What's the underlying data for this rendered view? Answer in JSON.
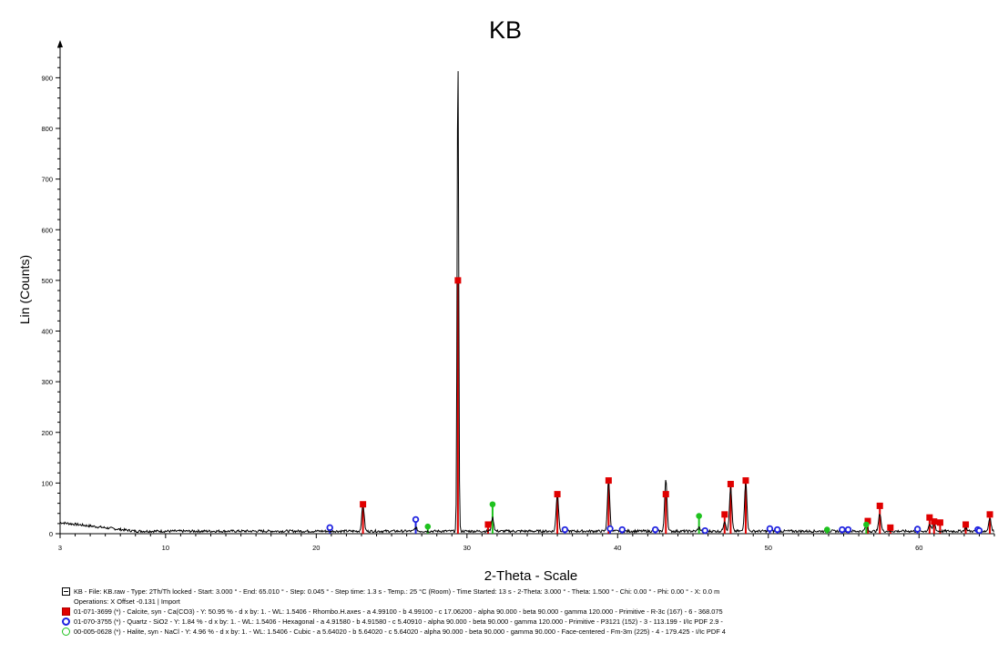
{
  "colors": {
    "pattern": "#000000",
    "calcite": "#e00000",
    "quartz": "#1f22e0",
    "halite": "#1fc21f",
    "axis": "#000000"
  },
  "chart_data": {
    "type": "line",
    "title": "KB",
    "xlabel": "2-Theta - Scale",
    "ylabel": "Lin (Counts)",
    "xlim": [
      3,
      65
    ],
    "ylim": [
      0,
      960
    ],
    "x_ticks": [
      3,
      10,
      20,
      30,
      40,
      50,
      60
    ],
    "y_ticks": [
      0,
      100,
      200,
      300,
      400,
      500,
      600,
      700,
      800,
      900
    ],
    "grid": false,
    "legend_position": "bottom",
    "series": [
      {
        "name": "KB",
        "kind": "pattern",
        "baseline": 5,
        "background_start": [
          3,
          22
        ],
        "peaks": [
          {
            "x": 23.1,
            "y": 58
          },
          {
            "x": 26.6,
            "y": 12
          },
          {
            "x": 29.4,
            "y": 958
          },
          {
            "x": 31.7,
            "y": 32
          },
          {
            "x": 36.0,
            "y": 80
          },
          {
            "x": 39.4,
            "y": 105
          },
          {
            "x": 43.2,
            "y": 108
          },
          {
            "x": 45.4,
            "y": 12
          },
          {
            "x": 47.1,
            "y": 25
          },
          {
            "x": 47.5,
            "y": 90
          },
          {
            "x": 48.5,
            "y": 102
          },
          {
            "x": 56.5,
            "y": 16
          },
          {
            "x": 57.4,
            "y": 40
          },
          {
            "x": 60.7,
            "y": 18
          },
          {
            "x": 61.0,
            "y": 22
          },
          {
            "x": 63.1,
            "y": 12
          },
          {
            "x": 64.7,
            "y": 32
          }
        ]
      },
      {
        "name": "Calcite",
        "kind": "sticks",
        "marker": "square",
        "sticks": [
          {
            "x": 23.1,
            "y": 58
          },
          {
            "x": 29.4,
            "y": 500
          },
          {
            "x": 31.4,
            "y": 18
          },
          {
            "x": 36.0,
            "y": 78
          },
          {
            "x": 39.4,
            "y": 105
          },
          {
            "x": 43.2,
            "y": 78
          },
          {
            "x": 47.1,
            "y": 38
          },
          {
            "x": 47.5,
            "y": 98
          },
          {
            "x": 48.5,
            "y": 105
          },
          {
            "x": 56.6,
            "y": 25
          },
          {
            "x": 57.4,
            "y": 55
          },
          {
            "x": 58.1,
            "y": 12
          },
          {
            "x": 60.7,
            "y": 32
          },
          {
            "x": 61.0,
            "y": 24
          },
          {
            "x": 61.4,
            "y": 22
          },
          {
            "x": 63.1,
            "y": 18
          },
          {
            "x": 64.7,
            "y": 38
          }
        ]
      },
      {
        "name": "Quartz",
        "kind": "sticks",
        "marker": "circle",
        "sticks": [
          {
            "x": 20.9,
            "y": 12
          },
          {
            "x": 26.6,
            "y": 28
          },
          {
            "x": 36.5,
            "y": 8
          },
          {
            "x": 39.5,
            "y": 10
          },
          {
            "x": 40.3,
            "y": 8
          },
          {
            "x": 42.5,
            "y": 8
          },
          {
            "x": 45.8,
            "y": 6
          },
          {
            "x": 50.1,
            "y": 10
          },
          {
            "x": 50.6,
            "y": 8
          },
          {
            "x": 54.9,
            "y": 8
          },
          {
            "x": 55.3,
            "y": 8
          },
          {
            "x": 59.9,
            "y": 9
          },
          {
            "x": 63.9,
            "y": 8
          },
          {
            "x": 64.0,
            "y": 6
          }
        ]
      },
      {
        "name": "Halite",
        "kind": "sticks",
        "marker": "green-circle",
        "sticks": [
          {
            "x": 27.4,
            "y": 14
          },
          {
            "x": 31.7,
            "y": 58
          },
          {
            "x": 45.4,
            "y": 35
          },
          {
            "x": 53.9,
            "y": 8
          },
          {
            "x": 56.5,
            "y": 18
          }
        ]
      }
    ]
  },
  "legend": {
    "scan_line1": "KB - File: KB.raw - Type: 2Th/Th locked - Start: 3.000 ° - End: 65.010 ° - Step: 0.045 ° - Step time: 1.3 s - Temp.: 25 °C (Room) - Time Started: 13 s - 2-Theta: 3.000 ° - Theta: 1.500 ° - Chi: 0.00 ° - Phi: 0.00 ° - X: 0.0 m",
    "scan_line2": "Operations: X Offset -0.131 | Import",
    "calcite": "01-071-3699 (*) - Calcite, syn - Ca(CO3) - Y: 50.95 % - d x by: 1. - WL: 1.5406 - Rhombo.H.axes - a 4.99100 - b 4.99100 - c 17.06200 - alpha 90.000 - beta 90.000 - gamma 120.000 - Primitive - R-3c (167) - 6 - 368.075",
    "quartz": "01-070-3755 (*) - Quartz - SiO2 - Y: 1.84 % - d x by: 1. - WL: 1.5406 - Hexagonal - a 4.91580 - b 4.91580 - c 5.40910 - alpha 90.000 - beta 90.000 - gamma 120.000 - Primitive - P3121 (152) - 3 - 113.199 - I/Ic PDF 2.9 -",
    "halite": "00-005-0628 (*) - Halite, syn - NaCl - Y: 4.96 % - d x by: 1. - WL: 1.5406 - Cubic - a 5.64020 - b 5.64020 - c 5.64020 - alpha 90.000 - beta 90.000 - gamma 90.000 - Face-centered - Fm-3m (225) - 4 - 179.425 - I/Ic PDF 4"
  }
}
